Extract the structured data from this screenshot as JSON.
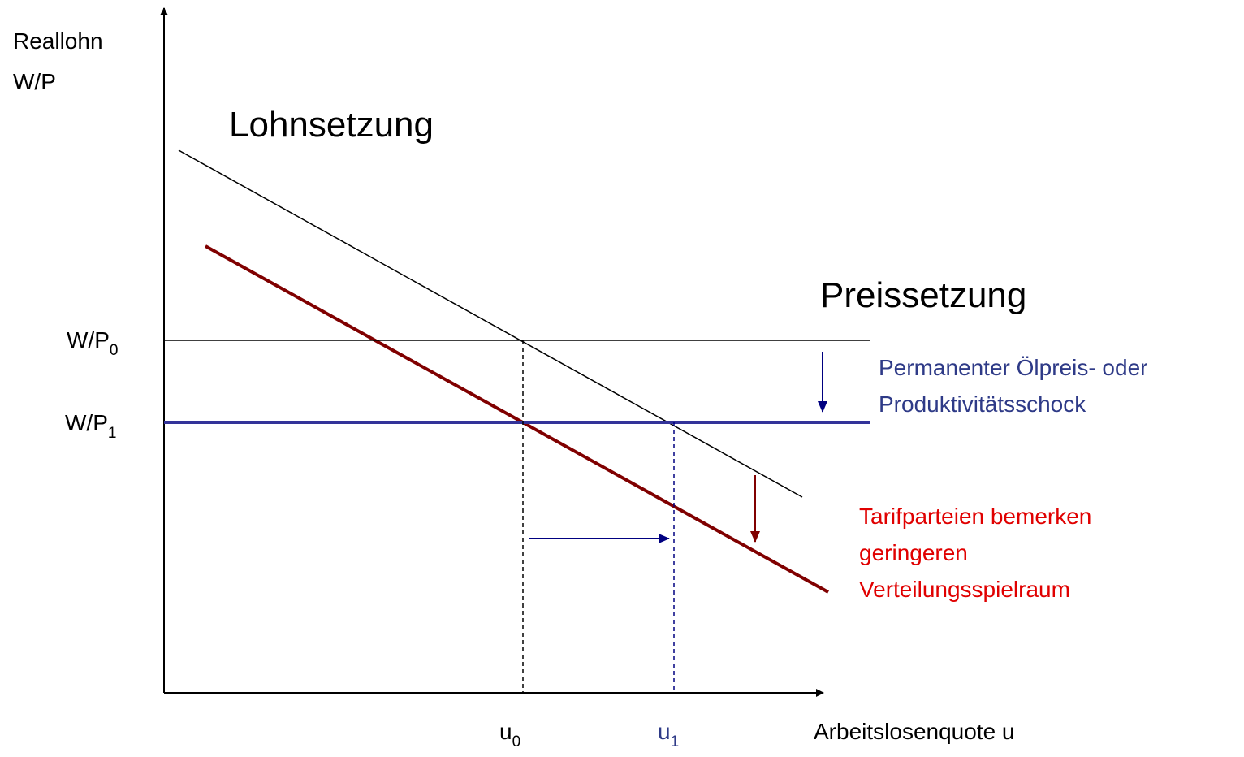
{
  "axes": {
    "y_label": [
      "Reallohn",
      "W/P"
    ],
    "x_label": "Arbeitslosenquote u"
  },
  "curves": {
    "wage_setting": "Lohnsetzung",
    "price_setting": "Preissetzung"
  },
  "y_ticks": [
    {
      "base": "W/P",
      "sub": "0"
    },
    {
      "base": "W/P",
      "sub": "1"
    }
  ],
  "x_ticks": [
    {
      "base": "u",
      "sub": "0"
    },
    {
      "base": "u",
      "sub": "1"
    }
  ],
  "annotations": {
    "shock": [
      "Permanenter Ölpreis- oder",
      "Produktivitätsschock"
    ],
    "bargaining": [
      "Tarifparteien bemerken",
      "geringeren",
      "Verteilungsspielraum"
    ]
  }
}
